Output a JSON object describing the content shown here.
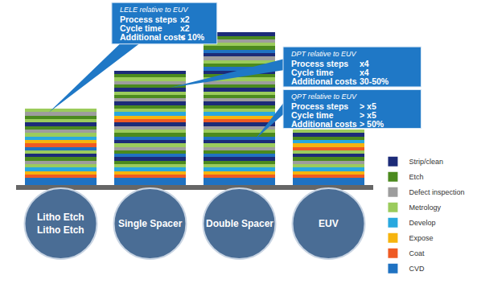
{
  "chart_data": {
    "type": "bar",
    "stacked": true,
    "categories": [
      "Litho Etch\nLitho Etch",
      "Single Spacer",
      "Double Spacer",
      "EUV"
    ],
    "ylim": [
      0,
      51
    ],
    "legend": "bottom right",
    "series": [
      {
        "name": "Strip/clean",
        "color": "#1c2b78"
      },
      {
        "name": "Etch",
        "color": "#4b8a1e"
      },
      {
        "name": "Defect inspection",
        "color": "#9d9d9d"
      },
      {
        "name": "Metrology",
        "color": "#9bcb5c"
      },
      {
        "name": "Develop",
        "color": "#28a8df"
      },
      {
        "name": "Expose",
        "color": "#f6b40e"
      },
      {
        "name": "Coat",
        "color": "#ef5a23"
      },
      {
        "name": "CVD",
        "color": "#1f72c2"
      }
    ],
    "stacks": [
      [
        {
          "name": "CVD",
          "value": 2
        },
        {
          "name": "Coat",
          "value": 1
        },
        {
          "name": "Expose",
          "value": 1
        },
        {
          "name": "Develop",
          "value": 1
        },
        {
          "name": "Metrology",
          "value": 1
        },
        {
          "name": "Defect inspection",
          "value": 1
        },
        {
          "name": "Etch",
          "value": 1
        },
        {
          "name": "Strip/clean",
          "value": 1
        },
        {
          "name": "Metrology",
          "value": 1
        },
        {
          "name": "CVD",
          "value": 1
        },
        {
          "name": "Coat",
          "value": 1
        },
        {
          "name": "Expose",
          "value": 1
        },
        {
          "name": "Develop",
          "value": 1
        },
        {
          "name": "Metrology",
          "value": 1
        },
        {
          "name": "Defect inspection",
          "value": 1
        },
        {
          "name": "Etch",
          "value": 1
        },
        {
          "name": "Strip/clean",
          "value": 1
        },
        {
          "name": "Metrology",
          "value": 1
        },
        {
          "name": "Etch",
          "value": 1
        },
        {
          "name": "Defect inspection",
          "value": 1
        },
        {
          "name": "Metrology",
          "value": 1
        }
      ],
      [
        {
          "name": "CVD",
          "value": 2
        },
        {
          "name": "Coat",
          "value": 1
        },
        {
          "name": "Expose",
          "value": 1
        },
        {
          "name": "Develop",
          "value": 1
        },
        {
          "name": "Metrology",
          "value": 1
        },
        {
          "name": "Etch",
          "value": 1
        },
        {
          "name": "Strip/clean",
          "value": 1
        },
        {
          "name": "CVD",
          "value": 1
        },
        {
          "name": "Etch",
          "value": 1
        },
        {
          "name": "Defect inspection",
          "value": 1
        },
        {
          "name": "Metrology",
          "value": 1
        },
        {
          "name": "Strip/clean",
          "value": 1
        },
        {
          "name": "CVD",
          "value": 1
        },
        {
          "name": "Etch",
          "value": 1
        },
        {
          "name": "Metrology",
          "value": 1
        },
        {
          "name": "Defect inspection",
          "value": 1
        },
        {
          "name": "Strip/clean",
          "value": 1
        },
        {
          "name": "Coat",
          "value": 1
        },
        {
          "name": "Expose",
          "value": 1
        },
        {
          "name": "Develop",
          "value": 1
        },
        {
          "name": "Metrology",
          "value": 1
        },
        {
          "name": "Etch",
          "value": 1
        },
        {
          "name": "Strip/clean",
          "value": 1
        },
        {
          "name": "Defect inspection",
          "value": 1
        },
        {
          "name": "Etch",
          "value": 1
        },
        {
          "name": "Metrology",
          "value": 1
        },
        {
          "name": "Strip/clean",
          "value": 1
        },
        {
          "name": "Etch",
          "value": 1
        },
        {
          "name": "Defect inspection",
          "value": 1
        },
        {
          "name": "Metrology",
          "value": 1
        },
        {
          "name": "Etch",
          "value": 1
        },
        {
          "name": "Strip/clean",
          "value": 1
        }
      ],
      [
        {
          "name": "CVD",
          "value": 2
        },
        {
          "name": "Coat",
          "value": 1
        },
        {
          "name": "Expose",
          "value": 1
        },
        {
          "name": "Develop",
          "value": 1
        },
        {
          "name": "Metrology",
          "value": 1
        },
        {
          "name": "Etch",
          "value": 1
        },
        {
          "name": "Strip/clean",
          "value": 1
        },
        {
          "name": "CVD",
          "value": 1
        },
        {
          "name": "Etch",
          "value": 1
        },
        {
          "name": "Defect inspection",
          "value": 1
        },
        {
          "name": "Metrology",
          "value": 1
        },
        {
          "name": "Strip/clean",
          "value": 1
        },
        {
          "name": "CVD",
          "value": 1
        },
        {
          "name": "Etch",
          "value": 1
        },
        {
          "name": "Metrology",
          "value": 1
        },
        {
          "name": "Defect inspection",
          "value": 1
        },
        {
          "name": "Strip/clean",
          "value": 1
        },
        {
          "name": "Coat",
          "value": 1
        },
        {
          "name": "Expose",
          "value": 1
        },
        {
          "name": "Develop",
          "value": 1
        },
        {
          "name": "Metrology",
          "value": 1
        },
        {
          "name": "Etch",
          "value": 1
        },
        {
          "name": "Strip/clean",
          "value": 1
        },
        {
          "name": "Defect inspection",
          "value": 1
        },
        {
          "name": "Etch",
          "value": 1
        },
        {
          "name": "Metrology",
          "value": 1
        },
        {
          "name": "Strip/clean",
          "value": 1
        },
        {
          "name": "Etch",
          "value": 1
        },
        {
          "name": "Defect inspection",
          "value": 1
        },
        {
          "name": "Metrology",
          "value": 1
        },
        {
          "name": "Etch",
          "value": 1
        },
        {
          "name": "Strip/clean",
          "value": 1
        },
        {
          "name": "CVD",
          "value": 1
        },
        {
          "name": "Etch",
          "value": 1
        },
        {
          "name": "Metrology",
          "value": 1
        },
        {
          "name": "Defect inspection",
          "value": 1
        },
        {
          "name": "Strip/clean",
          "value": 1
        },
        {
          "name": "CVD",
          "value": 1
        },
        {
          "name": "Etch",
          "value": 1
        },
        {
          "name": "Metrology",
          "value": 1
        },
        {
          "name": "Defect inspection",
          "value": 1
        },
        {
          "name": "Etch",
          "value": 1
        },
        {
          "name": "Strip/clean",
          "value": 1
        }
      ],
      [
        {
          "name": "CVD",
          "value": 2
        },
        {
          "name": "Coat",
          "value": 1
        },
        {
          "name": "Expose",
          "value": 1
        },
        {
          "name": "Develop",
          "value": 1
        },
        {
          "name": "Metrology",
          "value": 1
        },
        {
          "name": "Defect inspection",
          "value": 1
        },
        {
          "name": "Etch",
          "value": 1
        },
        {
          "name": "Strip/clean",
          "value": 1
        },
        {
          "name": "Metrology",
          "value": 1
        },
        {
          "name": "Coat",
          "value": 1
        },
        {
          "name": "Expose",
          "value": 1
        },
        {
          "name": "Develop",
          "value": 1
        },
        {
          "name": "Etch",
          "value": 1
        },
        {
          "name": "Strip/clean",
          "value": 1
        },
        {
          "name": "Metrology",
          "value": 1
        }
      ]
    ],
    "annotations": [
      {
        "title": "LELE relative to EUV",
        "target": "Litho Etch\nLitho Etch",
        "rows": [
          [
            "Process steps",
            "x2"
          ],
          [
            "Cycle time",
            "x2"
          ],
          [
            "Additional costs",
            "< 10%"
          ]
        ]
      },
      {
        "title": "DPT relative to EUV",
        "target": "Single Spacer",
        "rows": [
          [
            "Process steps",
            "x4"
          ],
          [
            "Cycle time",
            "x4"
          ],
          [
            "Additional costs",
            "30-50%"
          ]
        ]
      },
      {
        "title": "QPT relative to EUV",
        "target": "Double Spacer",
        "rows": [
          [
            "Process steps",
            "> x5"
          ],
          [
            "Cycle time",
            "> x5"
          ],
          [
            "Additional costs",
            "> 50%"
          ]
        ]
      }
    ]
  }
}
